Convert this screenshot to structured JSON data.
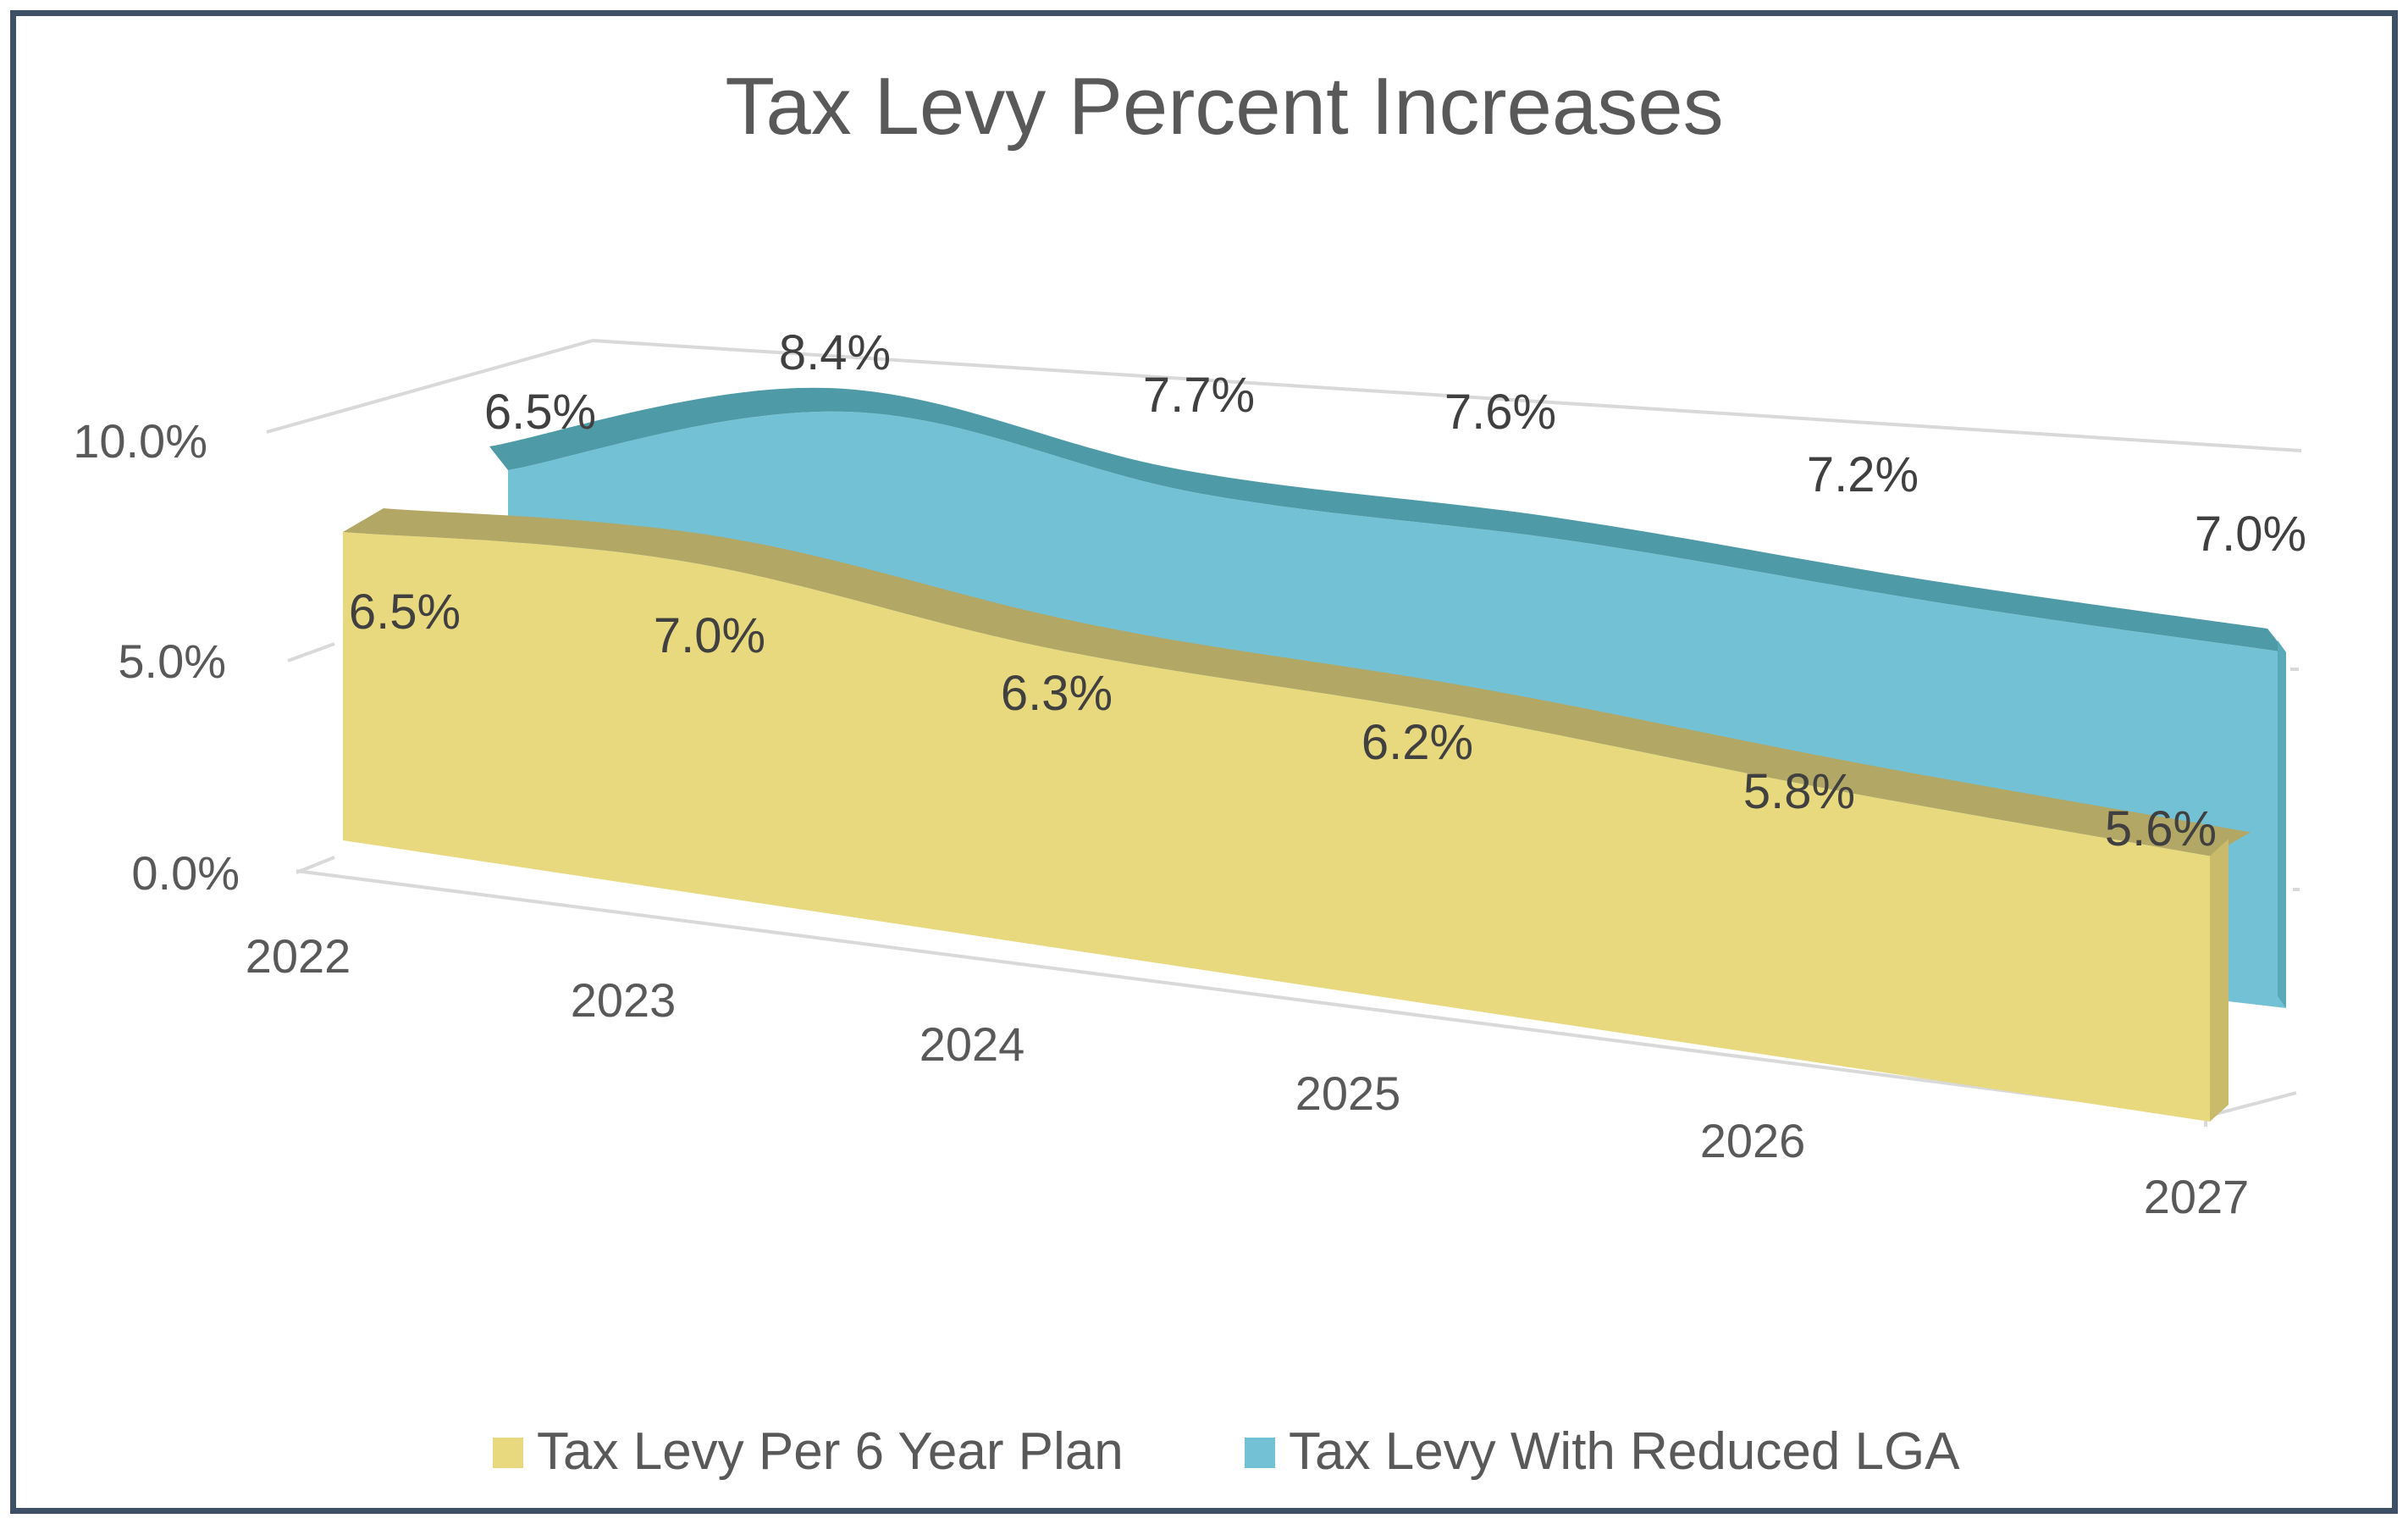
{
  "colors": {
    "frame": "#3e5066",
    "plan_front": "#e8d87e",
    "plan_top": "#b3a765",
    "plan_side": "#c9bb6a",
    "reduced_front": "#73c1d4",
    "reduced_top": "#4e9aa7",
    "reduced_side": "#5aa9b8",
    "axis": "#d9d9d9",
    "text": "#595959"
  },
  "chart_data": {
    "type": "area",
    "title": "Tax Levy Percent Increases",
    "categories": [
      "2022",
      "2023",
      "2024",
      "2025",
      "2026",
      "2027"
    ],
    "y_ticks": [
      "0.0%",
      "5.0%",
      "10.0%"
    ],
    "ylim": [
      0,
      10
    ],
    "series": [
      {
        "name": "Tax Levy Per 6 Year Plan",
        "values": [
          6.5,
          7.0,
          6.3,
          6.2,
          5.8,
          5.6
        ],
        "labels": [
          "6.5%",
          "7.0%",
          "6.3%",
          "6.2%",
          "5.8%",
          "5.6%"
        ]
      },
      {
        "name": "Tax Levy With Reduced LGA",
        "values": [
          6.5,
          8.4,
          7.7,
          7.6,
          7.2,
          7.0
        ],
        "labels": [
          "6.5%",
          "8.4%",
          "7.7%",
          "7.6%",
          "7.2%",
          "7.0%"
        ]
      }
    ],
    "legend": "bottom",
    "grid": true,
    "style": "3d-area"
  }
}
